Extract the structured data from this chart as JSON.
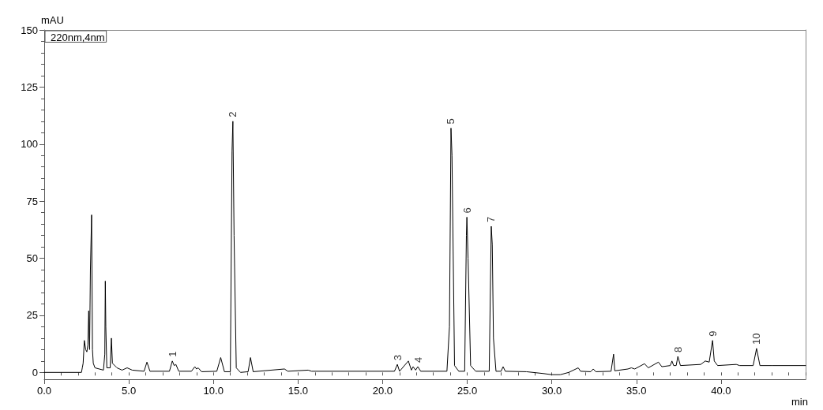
{
  "chart_data": {
    "type": "line",
    "xlabel": "min",
    "ylabel": "mAU",
    "legend": "top left",
    "grid": false,
    "marker": "none",
    "line_style": "solid",
    "xlim": [
      0,
      45
    ],
    "ylim": [
      -3,
      150
    ],
    "xticks": [
      {
        "value": 0,
        "label": "0.0"
      },
      {
        "value": 5,
        "label": "5.0"
      },
      {
        "value": 10,
        "label": "10.0"
      },
      {
        "value": 15,
        "label": "15.0"
      },
      {
        "value": 20,
        "label": "20.0"
      },
      {
        "value": 25,
        "label": "25.0"
      },
      {
        "value": 30,
        "label": "30.0"
      },
      {
        "value": 35,
        "label": "35.0"
      },
      {
        "value": 40,
        "label": "40.0"
      }
    ],
    "yticks": [
      0,
      25,
      50,
      75,
      100,
      125,
      150
    ],
    "series": [
      {
        "name": "220nm,4nm",
        "color": "#000000",
        "x": [
          0,
          2.2,
          2.25,
          2.3,
          2.37,
          2.45,
          2.52,
          2.58,
          2.63,
          2.68,
          2.73,
          2.8,
          2.85,
          2.9,
          3.0,
          3.5,
          3.58,
          3.61,
          3.64,
          3.7,
          3.9,
          3.97,
          4.03,
          4.3,
          4.6,
          4.9,
          5.2,
          5.9,
          6.07,
          6.25,
          7.4,
          7.57,
          7.68,
          7.78,
          7.95,
          8.7,
          8.9,
          9.0,
          9.1,
          9.3,
          10.2,
          10.43,
          10.65,
          11.0,
          11.1,
          11.15,
          11.22,
          11.35,
          11.6,
          12.05,
          12.19,
          12.35,
          14.2,
          14.4,
          15.6,
          15.8,
          20.7,
          20.87,
          21.0,
          21.52,
          21.7,
          21.8,
          21.95,
          22.08,
          22.25,
          23.8,
          23.95,
          24.04,
          24.1,
          24.25,
          24.5,
          24.85,
          24.95,
          24.98,
          25.05,
          25.2,
          25.5,
          26.3,
          26.42,
          26.48,
          26.55,
          26.7,
          27.0,
          27.12,
          27.25,
          28.5,
          29.5,
          30.0,
          30.5,
          31.0,
          31.56,
          31.7,
          32.3,
          32.45,
          32.6,
          33.5,
          33.65,
          33.72,
          34.5,
          34.7,
          34.9,
          35.48,
          35.7,
          36.3,
          36.5,
          37.0,
          37.1,
          37.2,
          37.35,
          37.45,
          37.6,
          38.8,
          39.07,
          39.3,
          39.5,
          39.6,
          39.8,
          40.9,
          41.1,
          41.9,
          42.1,
          42.3,
          43,
          45
        ],
        "values": [
          0,
          0,
          2,
          4,
          14,
          10,
          9,
          12,
          27,
          10,
          45,
          69,
          10,
          4,
          2,
          1,
          8,
          40,
          20,
          2,
          2,
          15,
          4,
          2,
          1,
          2,
          1,
          0.5,
          4.5,
          0.5,
          0.5,
          5,
          3,
          3.5,
          0.5,
          0.5,
          2.5,
          1.5,
          2,
          0.3,
          0.5,
          6.5,
          0.3,
          0.3,
          97,
          110,
          60,
          2,
          0,
          0.3,
          6.5,
          0.3,
          1.5,
          0.5,
          1,
          0.5,
          0.5,
          3.5,
          0.5,
          5,
          1,
          2.5,
          1,
          2.5,
          0.5,
          0.5,
          20,
          107,
          95,
          3,
          0.5,
          0.5,
          60,
          68,
          50,
          3,
          0.5,
          0.5,
          64,
          56,
          15,
          0.5,
          0.5,
          2.5,
          0.5,
          0.3,
          -0.5,
          -1,
          -1,
          0,
          2,
          0.5,
          0.3,
          1.5,
          0.3,
          0.5,
          8,
          0.7,
          1.5,
          2,
          1.5,
          3.8,
          2,
          4.5,
          2.5,
          3,
          5,
          3,
          3,
          7,
          3,
          3.5,
          5,
          4.5,
          14,
          5,
          3,
          3.5,
          3,
          3,
          10.5,
          3,
          3,
          3
        ]
      }
    ],
    "annotations": [
      {
        "text": "1",
        "x": 7.57,
        "y": 5
      },
      {
        "text": "2",
        "x": 11.15,
        "y": 110
      },
      {
        "text": "3",
        "x": 20.87,
        "y": 3.5
      },
      {
        "text": "4",
        "x": 22.08,
        "y": 2.5
      },
      {
        "text": "5",
        "x": 24.04,
        "y": 107
      },
      {
        "text": "6",
        "x": 24.98,
        "y": 68
      },
      {
        "text": "7",
        "x": 26.42,
        "y": 64
      },
      {
        "text": "8",
        "x": 37.45,
        "y": 7
      },
      {
        "text": "9",
        "x": 39.5,
        "y": 14
      },
      {
        "text": "10",
        "x": 42.1,
        "y": 10.5
      }
    ]
  }
}
